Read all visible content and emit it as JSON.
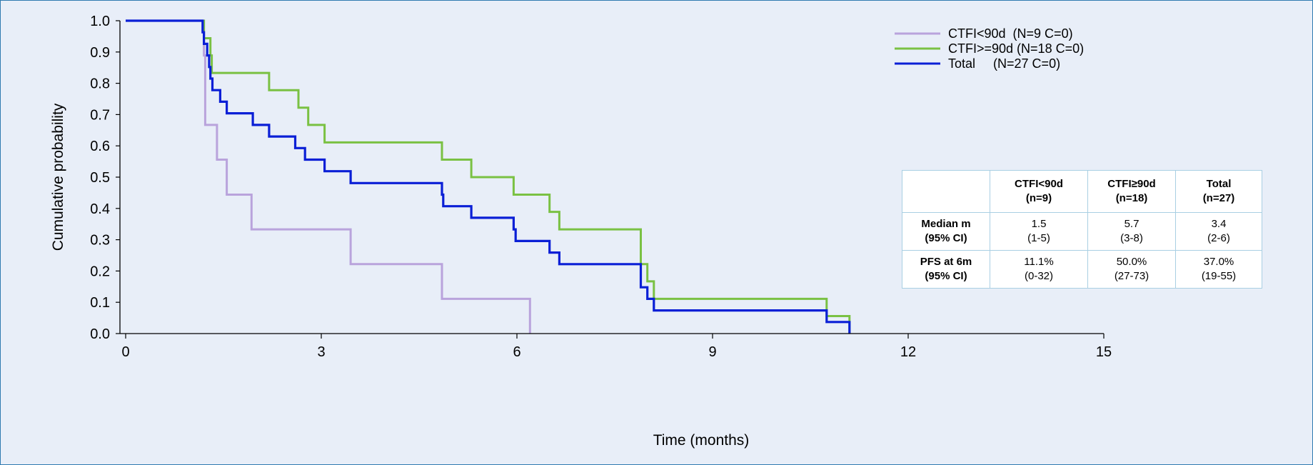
{
  "chart_data": {
    "type": "line",
    "subtype": "kaplan-meier step curves",
    "title": "",
    "xlabel": "Time (months)",
    "ylabel": "Cumulative probability",
    "xlim": [
      0,
      15
    ],
    "ylim": [
      0,
      1
    ],
    "x_ticks": [
      "0",
      "3",
      "6",
      "9",
      "12",
      "15"
    ],
    "y_ticks": [
      "0.0",
      "0.1",
      "0.2",
      "0.3",
      "0.4",
      "0.5",
      "0.6",
      "0.7",
      "0.8",
      "0.9",
      "1.0"
    ],
    "grid": false,
    "legend_position": "top-right",
    "series": [
      {
        "name": "CTFI<90d  (N=9 C=0)",
        "color": "#b9a3dc",
        "points": [
          [
            0,
            1.0
          ],
          [
            1.2,
            1.0
          ],
          [
            1.2,
            0.889
          ],
          [
            1.22,
            0.889
          ],
          [
            1.22,
            0.667
          ],
          [
            1.4,
            0.667
          ],
          [
            1.4,
            0.556
          ],
          [
            1.55,
            0.556
          ],
          [
            1.55,
            0.444
          ],
          [
            1.93,
            0.444
          ],
          [
            1.93,
            0.333
          ],
          [
            3.45,
            0.333
          ],
          [
            3.45,
            0.222
          ],
          [
            4.85,
            0.222
          ],
          [
            4.85,
            0.111
          ],
          [
            6.2,
            0.111
          ],
          [
            6.2,
            0.0
          ]
        ]
      },
      {
        "name": "CTFI>=90d (N=18 C=0)",
        "color": "#7ac143",
        "points": [
          [
            0,
            1.0
          ],
          [
            1.2,
            1.0
          ],
          [
            1.2,
            0.944
          ],
          [
            1.3,
            0.944
          ],
          [
            1.3,
            0.889
          ],
          [
            1.32,
            0.889
          ],
          [
            1.32,
            0.833
          ],
          [
            2.2,
            0.833
          ],
          [
            2.2,
            0.778
          ],
          [
            2.65,
            0.778
          ],
          [
            2.65,
            0.722
          ],
          [
            2.8,
            0.722
          ],
          [
            2.8,
            0.667
          ],
          [
            3.05,
            0.667
          ],
          [
            3.05,
            0.611
          ],
          [
            4.85,
            0.611
          ],
          [
            4.85,
            0.556
          ],
          [
            5.3,
            0.556
          ],
          [
            5.3,
            0.5
          ],
          [
            5.95,
            0.5
          ],
          [
            5.95,
            0.444
          ],
          [
            6.5,
            0.444
          ],
          [
            6.5,
            0.389
          ],
          [
            6.65,
            0.389
          ],
          [
            6.65,
            0.333
          ],
          [
            7.9,
            0.333
          ],
          [
            7.9,
            0.222
          ],
          [
            8.0,
            0.222
          ],
          [
            8.0,
            0.167
          ],
          [
            8.1,
            0.167
          ],
          [
            8.1,
            0.111
          ],
          [
            10.75,
            0.111
          ],
          [
            10.75,
            0.056
          ],
          [
            11.1,
            0.056
          ],
          [
            11.1,
            0.0
          ]
        ]
      },
      {
        "name": "Total     (N=27 C=0)",
        "color": "#0a1fd6",
        "points": [
          [
            0,
            1.0
          ],
          [
            1.18,
            1.0
          ],
          [
            1.18,
            0.963
          ],
          [
            1.2,
            0.963
          ],
          [
            1.2,
            0.926
          ],
          [
            1.25,
            0.926
          ],
          [
            1.25,
            0.889
          ],
          [
            1.28,
            0.889
          ],
          [
            1.28,
            0.852
          ],
          [
            1.3,
            0.852
          ],
          [
            1.3,
            0.815
          ],
          [
            1.33,
            0.815
          ],
          [
            1.33,
            0.778
          ],
          [
            1.45,
            0.778
          ],
          [
            1.45,
            0.741
          ],
          [
            1.55,
            0.741
          ],
          [
            1.55,
            0.704
          ],
          [
            1.95,
            0.704
          ],
          [
            1.95,
            0.667
          ],
          [
            2.2,
            0.667
          ],
          [
            2.2,
            0.63
          ],
          [
            2.6,
            0.63
          ],
          [
            2.6,
            0.593
          ],
          [
            2.75,
            0.593
          ],
          [
            2.75,
            0.556
          ],
          [
            3.05,
            0.556
          ],
          [
            3.05,
            0.519
          ],
          [
            3.45,
            0.519
          ],
          [
            3.45,
            0.481
          ],
          [
            4.85,
            0.481
          ],
          [
            4.85,
            0.444
          ],
          [
            4.87,
            0.444
          ],
          [
            4.87,
            0.407
          ],
          [
            5.3,
            0.407
          ],
          [
            5.3,
            0.37
          ],
          [
            5.95,
            0.37
          ],
          [
            5.95,
            0.333
          ],
          [
            5.98,
            0.333
          ],
          [
            5.98,
            0.296
          ],
          [
            6.5,
            0.296
          ],
          [
            6.5,
            0.259
          ],
          [
            6.65,
            0.259
          ],
          [
            6.65,
            0.222
          ],
          [
            7.9,
            0.222
          ],
          [
            7.9,
            0.148
          ],
          [
            8.0,
            0.148
          ],
          [
            8.0,
            0.111
          ],
          [
            8.1,
            0.111
          ],
          [
            8.1,
            0.074
          ],
          [
            10.75,
            0.074
          ],
          [
            10.75,
            0.037
          ],
          [
            11.1,
            0.037
          ],
          [
            11.1,
            0.0
          ]
        ]
      }
    ],
    "table": {
      "header": [
        "",
        "CTFI<90d\n(n=9)",
        "CTFI≥90d\n(n=18)",
        "Total\n(n=27)"
      ],
      "rows": [
        [
          "Median m\n(95% CI)",
          "1.5\n(1-5)",
          "5.7\n(3-8)",
          "3.4\n(2-6)"
        ],
        [
          "PFS at 6m\n(95% CI)",
          "11.1%\n(0-32)",
          "50.0%\n(27-73)",
          "37.0%\n(19-55)"
        ]
      ]
    }
  }
}
